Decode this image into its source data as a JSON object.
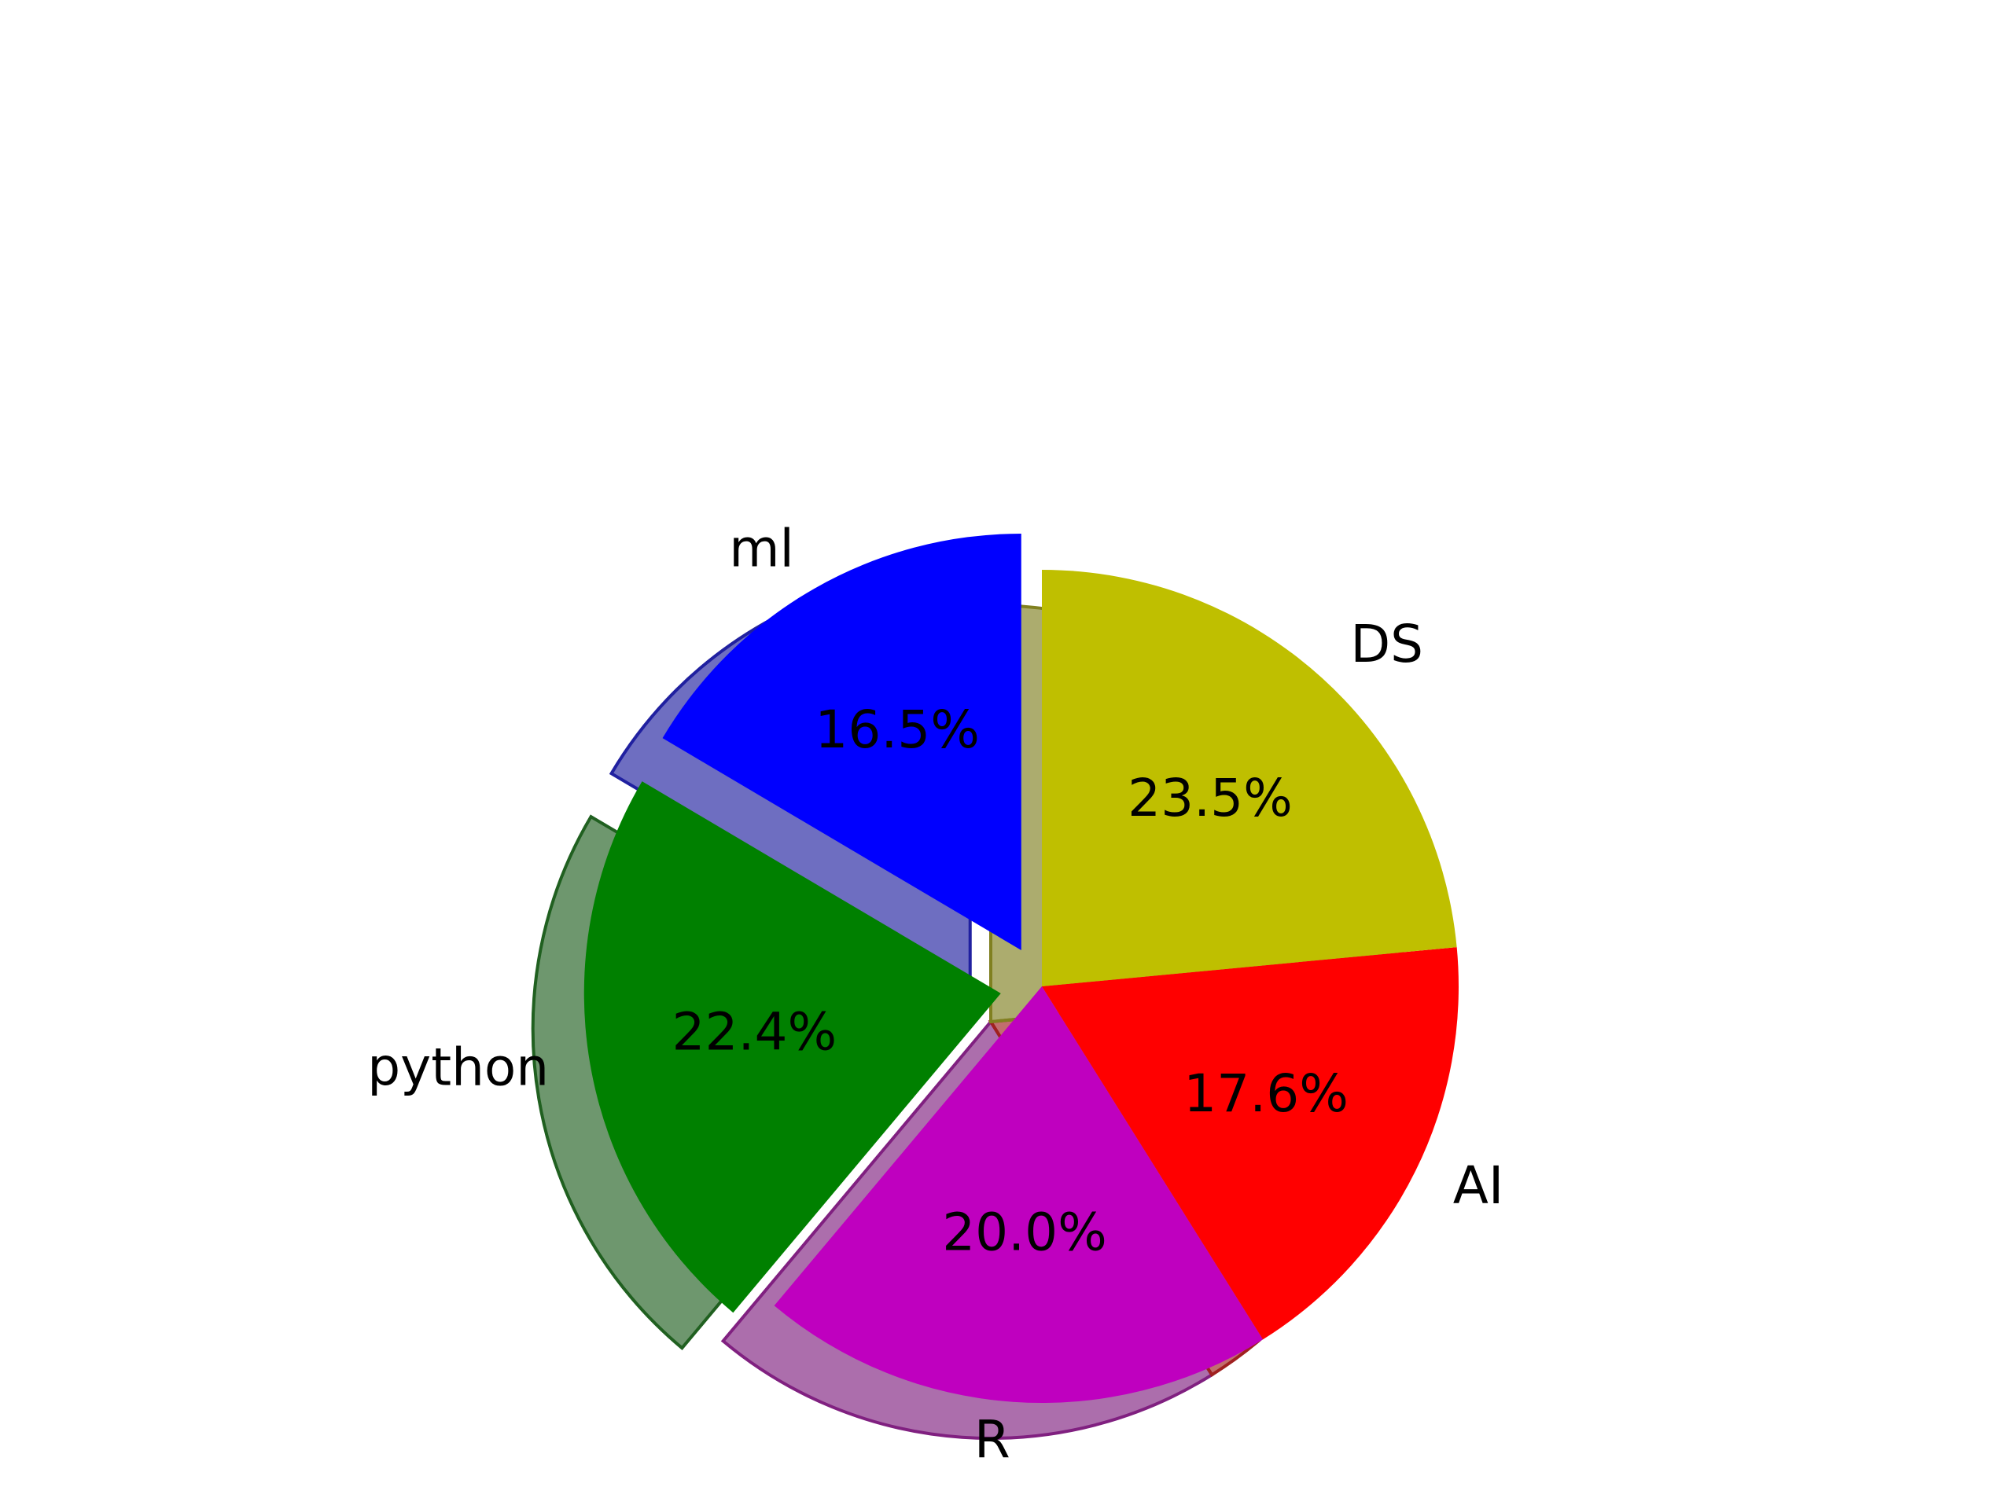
{
  "chart_data": {
    "type": "pie",
    "title": "",
    "labels": [
      "ml",
      "python",
      "R",
      "AI",
      "DS"
    ],
    "values": [
      16.5,
      22.4,
      20.0,
      17.6,
      23.5
    ],
    "percent_labels": [
      "16.5%",
      "22.4%",
      "20.0%",
      "17.6%",
      "23.5%"
    ],
    "colors": [
      "#0000ff",
      "#008000",
      "#bf00bf",
      "#ff0000",
      "#bfbf00"
    ],
    "exploded": [
      true,
      true,
      false,
      false,
      false
    ],
    "shadow": true,
    "start_angle_deg": 90,
    "direction": "counterclockwise",
    "legend": "none"
  }
}
